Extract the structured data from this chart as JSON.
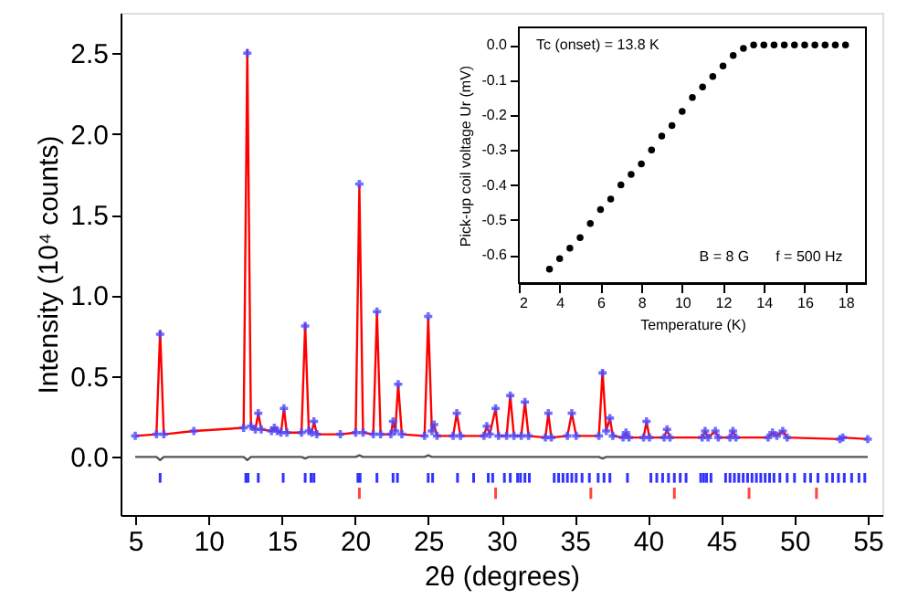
{
  "chart_data": [
    {
      "type": "line",
      "xlabel": "2θ (degrees)",
      "ylabel": "Intensity (10⁴ counts)",
      "xlim": [
        4,
        56
      ],
      "ylim": [
        -0.36,
        2.75
      ],
      "xticks": [
        5,
        10,
        15,
        20,
        25,
        30,
        35,
        40,
        45,
        50,
        55
      ],
      "yticks": [
        {
          "value": 0,
          "label": "0.0"
        },
        {
          "value": 0.5,
          "label": "0.5"
        },
        {
          "value": 1,
          "label": "1.0"
        },
        {
          "value": 1.5,
          "label": "1.5"
        },
        {
          "value": 2,
          "label": "2.0"
        },
        {
          "value": 2.5,
          "label": "2.5"
        }
      ],
      "x": [
        5.0,
        6.45,
        6.7,
        6.95,
        9.0,
        12.4,
        12.65,
        12.9,
        13.2,
        13.4,
        13.6,
        14.3,
        14.5,
        14.7,
        14.95,
        15.15,
        15.35,
        16.35,
        16.6,
        16.85,
        17.05,
        17.2,
        17.4,
        19.0,
        20.05,
        20.3,
        20.55,
        21.25,
        21.5,
        21.75,
        22.45,
        22.6,
        22.75,
        22.95,
        23.2,
        24.75,
        25.0,
        25.25,
        25.4,
        25.6,
        26.7,
        26.95,
        27.2,
        28.8,
        29.0,
        29.2,
        29.6,
        29.8,
        30.35,
        30.6,
        30.85,
        31.35,
        31.6,
        31.85,
        33.0,
        33.2,
        33.4,
        34.5,
        34.8,
        35.1,
        36.65,
        36.9,
        37.15,
        37.4,
        37.6,
        38.3,
        38.5,
        38.7,
        39.7,
        39.9,
        40.1,
        41.1,
        41.3,
        41.5,
        43.7,
        43.9,
        44.1,
        44.6,
        44.8,
        45.6,
        45.8,
        46.0,
        48.2,
        48.5,
        48.8,
        49.2,
        49.5,
        53.1,
        53.3,
        55.0
      ],
      "series": [
        {
          "type": "scatter",
          "marker": "cross",
          "color": "#4a4aff",
          "values": [
            0.13,
            0.14,
            0.76,
            0.14,
            0.16,
            0.18,
            2.5,
            0.19,
            0.17,
            0.27,
            0.17,
            0.16,
            0.18,
            0.16,
            0.15,
            0.3,
            0.15,
            0.15,
            0.81,
            0.16,
            0.15,
            0.22,
            0.14,
            0.14,
            0.15,
            1.69,
            0.15,
            0.14,
            0.9,
            0.14,
            0.14,
            0.22,
            0.16,
            0.45,
            0.14,
            0.13,
            0.87,
            0.16,
            0.2,
            0.13,
            0.13,
            0.27,
            0.13,
            0.13,
            0.19,
            0.14,
            0.3,
            0.13,
            0.13,
            0.38,
            0.13,
            0.13,
            0.34,
            0.13,
            0.12,
            0.27,
            0.12,
            0.13,
            0.27,
            0.13,
            0.13,
            0.52,
            0.16,
            0.24,
            0.13,
            0.12,
            0.15,
            0.12,
            0.12,
            0.22,
            0.12,
            0.12,
            0.17,
            0.12,
            0.12,
            0.16,
            0.12,
            0.16,
            0.12,
            0.12,
            0.16,
            0.12,
            0.12,
            0.15,
            0.13,
            0.16,
            0.12,
            0.11,
            0.12,
            0.11
          ]
        },
        {
          "type": "line",
          "color": "#ff0000",
          "values": [
            0.13,
            0.14,
            0.78,
            0.14,
            0.16,
            0.18,
            2.52,
            0.19,
            0.17,
            0.27,
            0.17,
            0.16,
            0.18,
            0.16,
            0.15,
            0.3,
            0.15,
            0.15,
            0.82,
            0.16,
            0.15,
            0.22,
            0.14,
            0.14,
            0.15,
            1.68,
            0.15,
            0.14,
            0.9,
            0.14,
            0.14,
            0.22,
            0.16,
            0.45,
            0.14,
            0.13,
            0.86,
            0.16,
            0.2,
            0.13,
            0.13,
            0.27,
            0.13,
            0.13,
            0.19,
            0.14,
            0.3,
            0.13,
            0.13,
            0.38,
            0.13,
            0.13,
            0.34,
            0.13,
            0.12,
            0.27,
            0.12,
            0.13,
            0.27,
            0.13,
            0.13,
            0.53,
            0.16,
            0.24,
            0.13,
            0.12,
            0.15,
            0.12,
            0.12,
            0.22,
            0.12,
            0.12,
            0.17,
            0.12,
            0.12,
            0.16,
            0.12,
            0.16,
            0.12,
            0.12,
            0.16,
            0.12,
            0.12,
            0.15,
            0.13,
            0.16,
            0.12,
            0.11,
            0.12,
            0.11
          ]
        },
        {
          "type": "line",
          "color": "#555555",
          "values": [
            0,
            0,
            -0.02,
            0,
            0,
            0,
            -0.02,
            0,
            0,
            0,
            0,
            0,
            0,
            0,
            0,
            0,
            0,
            0,
            -0.01,
            0,
            0,
            0,
            0,
            0,
            0,
            0.01,
            0,
            0,
            0,
            0,
            0,
            0,
            0,
            0,
            0,
            0,
            0.01,
            0,
            0,
            0,
            0,
            0,
            0,
            0,
            0,
            0,
            0,
            0,
            0,
            0,
            0,
            0,
            0,
            0,
            0,
            0,
            0,
            0,
            0,
            0,
            0,
            -0.01,
            0,
            0,
            0,
            0,
            0,
            0,
            0,
            0,
            0,
            0,
            0,
            0,
            0,
            0,
            0,
            0,
            0,
            0,
            0,
            0,
            0,
            0,
            0,
            0,
            0,
            0,
            0,
            0
          ]
        },
        {
          "type": "bar",
          "color": "#3333ff",
          "x": [
            6.7,
            12.55,
            12.7,
            13.4,
            15.1,
            16.6,
            17.0,
            17.2,
            20.2,
            20.35,
            21.5,
            22.6,
            22.9,
            25.0,
            25.3,
            27.0,
            28.1,
            29.1,
            29.4,
            30.2,
            30.6,
            31.1,
            31.3,
            31.6,
            31.9,
            33.6,
            33.9,
            34.2,
            34.5,
            34.8,
            35.1,
            35.5,
            36.0,
            36.6,
            37.0,
            37.4,
            38.6,
            40.2,
            40.6,
            41.0,
            41.4,
            41.8,
            42.2,
            42.6,
            43.6,
            43.8,
            44.0,
            44.3,
            45.3,
            45.6,
            45.9,
            46.2,
            46.5,
            46.8,
            47.1,
            47.4,
            47.7,
            48.0,
            48.3,
            48.6,
            49.0,
            49.5,
            50.0,
            50.7,
            51.1,
            51.6,
            52.2,
            52.6,
            53.0,
            53.4,
            53.9,
            54.4,
            54.8
          ],
          "base": [
            -0.16,
            -0.16,
            -0.16,
            -0.16,
            -0.16,
            -0.16,
            -0.16,
            -0.16,
            -0.16,
            -0.16,
            -0.16,
            -0.16,
            -0.16,
            -0.16,
            -0.16,
            -0.16,
            -0.16,
            -0.16,
            -0.16,
            -0.16,
            -0.16,
            -0.16,
            -0.16,
            -0.16,
            -0.16,
            -0.16,
            -0.16,
            -0.16,
            -0.16,
            -0.16,
            -0.16,
            -0.16,
            -0.16,
            -0.16,
            -0.16,
            -0.16,
            -0.16,
            -0.16,
            -0.16,
            -0.16,
            -0.16,
            -0.16,
            -0.16,
            -0.16,
            -0.16,
            -0.16,
            -0.16,
            -0.16,
            -0.16,
            -0.16,
            -0.16,
            -0.16,
            -0.16,
            -0.16,
            -0.16,
            -0.16,
            -0.16,
            -0.16,
            -0.16,
            -0.16,
            -0.16,
            -0.16,
            -0.16,
            -0.16,
            -0.16,
            -0.16,
            -0.16,
            -0.16,
            -0.16,
            -0.16,
            -0.16,
            -0.16,
            -0.16
          ],
          "values": [
            0.06,
            0.06,
            0.06,
            0.06,
            0.06,
            0.06,
            0.06,
            0.06,
            0.06,
            0.06,
            0.06,
            0.06,
            0.06,
            0.06,
            0.06,
            0.06,
            0.06,
            0.06,
            0.06,
            0.06,
            0.06,
            0.06,
            0.06,
            0.06,
            0.06,
            0.06,
            0.06,
            0.06,
            0.06,
            0.06,
            0.06,
            0.06,
            0.06,
            0.06,
            0.06,
            0.06,
            0.06,
            0.06,
            0.06,
            0.06,
            0.06,
            0.06,
            0.06,
            0.06,
            0.06,
            0.06,
            0.06,
            0.06,
            0.06,
            0.06,
            0.06,
            0.06,
            0.06,
            0.06,
            0.06,
            0.06,
            0.06,
            0.06,
            0.06,
            0.06,
            0.06,
            0.06,
            0.06,
            0.06,
            0.06,
            0.06,
            0.06,
            0.06,
            0.06,
            0.06,
            0.06,
            0.06,
            0.06
          ]
        },
        {
          "type": "bar",
          "color": "#ff4444",
          "x": [
            20.3,
            29.6,
            36.1,
            41.8,
            46.9,
            51.5
          ],
          "base": [
            -0.26,
            -0.26,
            -0.26,
            -0.26,
            -0.26,
            -0.26
          ],
          "values": [
            0.07,
            0.07,
            0.07,
            0.07,
            0.07,
            0.07
          ]
        }
      ]
    },
    {
      "type": "scatter",
      "marker": "circle",
      "xlabel": "Temperature (K)",
      "ylabel": "Pick-up coil voltage Ur (mV)",
      "xlim": [
        2,
        19
      ],
      "ylim": [
        -0.68,
        0.05
      ],
      "xticks": [
        2,
        4,
        6,
        8,
        10,
        12,
        14,
        16,
        18
      ],
      "yticks": [
        {
          "value": -0.6,
          "label": "-0.6"
        },
        {
          "value": -0.5,
          "label": "-0.5"
        },
        {
          "value": -0.4,
          "label": "-0.4"
        },
        {
          "value": -0.3,
          "label": "-0.3"
        },
        {
          "value": -0.2,
          "label": "-0.2"
        },
        {
          "value": -0.1,
          "label": "-0.1"
        },
        {
          "value": 0,
          "label": "0.0"
        }
      ],
      "annotations": [
        "Tc (onset) = 13.8 K",
        "B = 8 G",
        "f = 500 Hz"
      ],
      "x": [
        3.5,
        4,
        4.5,
        5,
        5.5,
        6,
        6.5,
        7,
        7.5,
        8,
        8.5,
        9,
        9.5,
        10,
        10.5,
        11,
        11.5,
        12,
        12.5,
        13,
        13.5,
        14,
        14.5,
        15,
        15.5,
        16,
        16.5,
        17,
        17.5,
        18
      ],
      "series": [
        {
          "color": "#000000",
          "values": [
            -0.64,
            -0.61,
            -0.58,
            -0.55,
            -0.51,
            -0.47,
            -0.44,
            -0.4,
            -0.37,
            -0.34,
            -0.3,
            -0.26,
            -0.23,
            -0.19,
            -0.15,
            -0.12,
            -0.09,
            -0.06,
            -0.03,
            -0.01,
            0,
            0,
            0,
            0,
            0,
            0,
            0,
            0,
            0,
            0
          ]
        }
      ]
    }
  ]
}
